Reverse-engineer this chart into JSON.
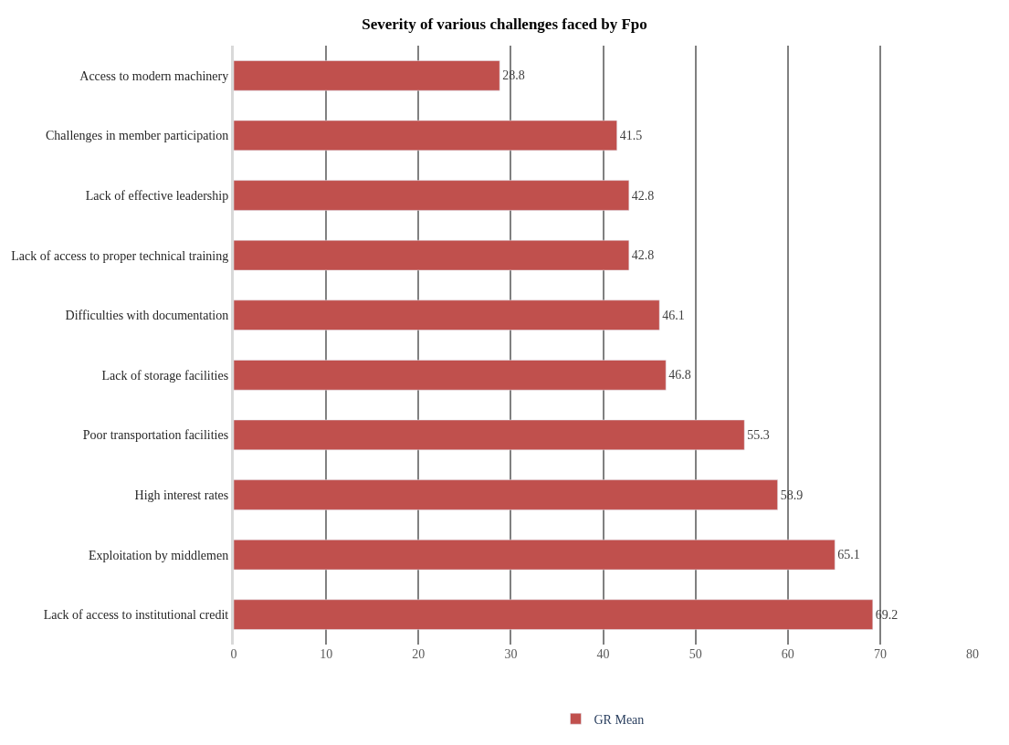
{
  "chart_data": {
    "type": "bar",
    "orientation": "horizontal",
    "title": "Severity of various challenges faced by Fpo",
    "categories": [
      "Access to modern machinery",
      "Challenges in member participation",
      "Lack of effective leadership",
      "Lack of access to proper technical training",
      "Difficulties with documentation",
      "Lack of storage facilities",
      "Poor transportation facilities",
      "High interest rates",
      "Exploitation by middlemen",
      "Lack of access to institutional credit"
    ],
    "series": [
      {
        "name": "GR Mean",
        "color": "#c0504d",
        "values": [
          28.8,
          41.5,
          42.8,
          42.8,
          46.1,
          46.8,
          55.3,
          58.9,
          65.1,
          69.2
        ]
      }
    ],
    "xlim": [
      0,
      80
    ],
    "xticks": [
      0,
      10,
      20,
      30,
      40,
      50,
      60,
      70,
      80
    ],
    "grid": "x",
    "legend": "bottom",
    "data_labels": true
  }
}
